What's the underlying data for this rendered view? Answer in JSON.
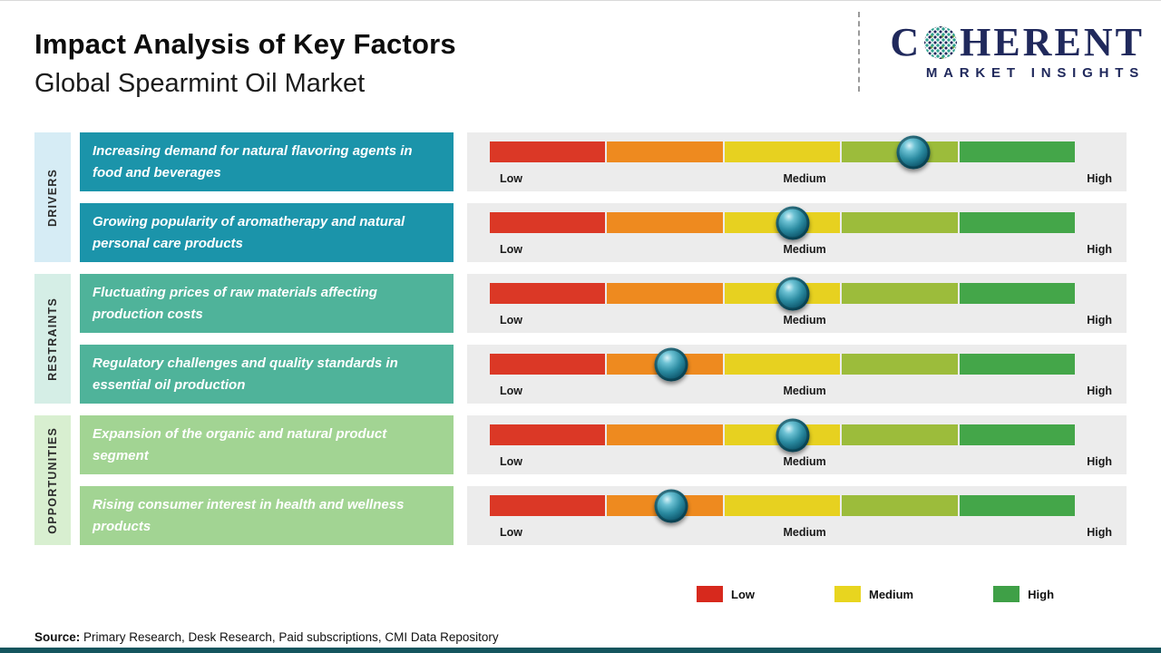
{
  "header": {
    "title": "Impact Analysis of Key Factors",
    "subtitle": "Global Spearmint Oil Market"
  },
  "logo": {
    "brand_c": "C",
    "brand_rest": "HERENT",
    "tagline": "MARKET INSIGHTS",
    "globe_icon": "dotted-globe-o"
  },
  "groups": [
    {
      "label": "DRIVERS"
    },
    {
      "label": "RESTRAINTS"
    },
    {
      "label": "OPPORTUNITIES"
    }
  ],
  "factors": [
    {
      "group": "Drivers",
      "text": "Increasing demand for natural flavoring agents in food and beverages",
      "impact": "Medium-High",
      "position_pct": 72.4
    },
    {
      "group": "Drivers",
      "text": "Growing popularity of aromatherapy and natural personal care products",
      "impact": "Medium",
      "position_pct": 51.8
    },
    {
      "group": "Restraints",
      "text": "Fluctuating prices of raw materials affecting production costs",
      "impact": "Medium",
      "position_pct": 51.8
    },
    {
      "group": "Restraints",
      "text": "Regulatory challenges and quality standards in essential oil production",
      "impact": "Low-Medium",
      "position_pct": 31.0
    },
    {
      "group": "Opportunities",
      "text": "Expansion of the organic and natural product segment",
      "impact": "Medium",
      "position_pct": 51.8
    },
    {
      "group": "Opportunities",
      "text": "Rising consumer interest in health and wellness products",
      "impact": "Low-Medium",
      "position_pct": 31.0
    }
  ],
  "scale_labels": {
    "low": "Low",
    "medium": "Medium",
    "high": "High"
  },
  "legend": [
    {
      "label": "Low",
      "color": "#d7291d"
    },
    {
      "label": "Medium",
      "color": "#e8d51f"
    },
    {
      "label": "High",
      "color": "#3fa047"
    }
  ],
  "source": {
    "label": "Source:",
    "text": " Primary Research, Desk Research, Paid subscriptions, CMI Data Repository"
  },
  "colors": {
    "drivers_box": "#1b94aa",
    "restraints_box": "#4fb39a",
    "opportunities_box": "#a2d493",
    "drivers_sidebar": "#d6ecf5",
    "restraints_sidebar": "#d5eee6",
    "opportunities_sidebar": "#d8efd0",
    "bar_segments": [
      "#db3826",
      "#ee8a1f",
      "#e7d120",
      "#9cbc3b",
      "#44a649"
    ],
    "footer_bar": "#14555e",
    "logo_navy": "#20295c"
  },
  "chart_data": {
    "type": "bar",
    "title": "Impact Analysis of Key Factors",
    "subtitle": "Global Spearmint Oil Market",
    "orientation": "horizontal-impact-scale",
    "scale": [
      "Low",
      "Medium",
      "High"
    ],
    "scale_anchor_pct": {
      "Low": 0,
      "Medium": 52,
      "High": 100
    },
    "categories": [
      "Increasing demand for natural flavoring agents in food and beverages",
      "Growing popularity of aromatherapy and natural personal care products",
      "Fluctuating prices of raw materials affecting production costs",
      "Regulatory challenges and quality standards in essential oil production",
      "Expansion of the organic and natural product segment",
      "Rising consumer interest in health and wellness products"
    ],
    "groups": [
      "Drivers",
      "Drivers",
      "Restraints",
      "Restraints",
      "Opportunities",
      "Opportunities"
    ],
    "series": [
      {
        "name": "Impact position (% of scale)",
        "values": [
          72.4,
          51.8,
          51.8,
          31.0,
          51.8,
          31.0
        ]
      }
    ],
    "impact_levels": [
      "Medium-High",
      "Medium",
      "Medium",
      "Low-Medium",
      "Medium",
      "Low-Medium"
    ],
    "legend_position": "bottom-right",
    "annotations": "Source: Primary Research, Desk Research, Paid subscriptions, CMI Data Repository"
  }
}
